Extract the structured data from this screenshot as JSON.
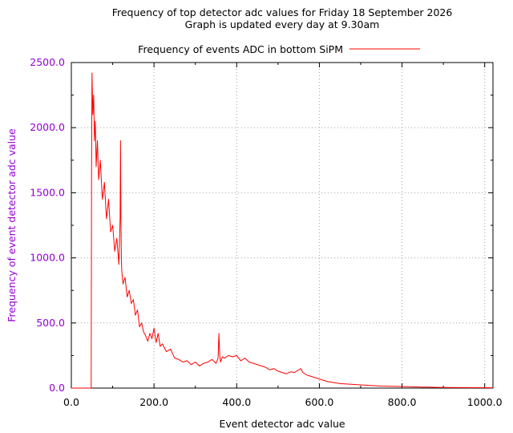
{
  "chart_data": {
    "type": "line",
    "title_line1": "Frequency of top detector adc values for Friday 18 September 2026",
    "title_line2": "Graph is updated every day at 9.30am",
    "xlabel": "Event detector adc value",
    "ylabel": "Frequency of event detector adc value",
    "xlim": [
      0,
      1020
    ],
    "ylim": [
      0,
      2500
    ],
    "x_ticks": [
      0,
      200,
      400,
      600,
      800,
      1000
    ],
    "x_tick_labels": [
      "0.0",
      "200.0",
      "400.0",
      "600.0",
      "800.0",
      "1000.0"
    ],
    "y_ticks": [
      0,
      500,
      1000,
      1500,
      2000,
      2500
    ],
    "y_tick_labels": [
      "0.0",
      "500.0",
      "1000.0",
      "1500.0",
      "2000.0",
      "2500.0"
    ],
    "grid": true,
    "legend_position": "top-center",
    "series": [
      {
        "name": "Frequency of events ADC in bottom SiPM",
        "color": "#ff0000",
        "x": [
          0,
          48,
          49,
          50,
          52,
          54,
          56,
          58,
          60,
          63,
          66,
          70,
          75,
          80,
          85,
          90,
          95,
          100,
          105,
          110,
          115,
          118,
          119,
          120,
          121,
          122,
          125,
          130,
          135,
          140,
          145,
          150,
          155,
          160,
          165,
          170,
          175,
          180,
          185,
          190,
          195,
          200,
          205,
          210,
          215,
          220,
          230,
          240,
          250,
          260,
          270,
          280,
          290,
          300,
          310,
          320,
          330,
          340,
          350,
          355,
          357,
          359,
          361,
          363,
          366,
          370,
          380,
          390,
          400,
          410,
          420,
          430,
          440,
          450,
          460,
          470,
          480,
          490,
          500,
          510,
          520,
          530,
          540,
          550,
          555,
          560,
          570,
          580,
          590,
          600,
          620,
          650,
          700,
          750,
          800,
          850,
          900,
          950,
          1000,
          1020
        ],
        "values": [
          0,
          0,
          1750,
          2420,
          2100,
          2250,
          1900,
          2050,
          1700,
          1900,
          1600,
          1750,
          1450,
          1580,
          1300,
          1450,
          1200,
          1250,
          1050,
          1150,
          950,
          1300,
          1900,
          1300,
          1000,
          900,
          800,
          850,
          700,
          750,
          650,
          680,
          560,
          600,
          470,
          500,
          430,
          400,
          360,
          420,
          380,
          460,
          350,
          420,
          320,
          340,
          280,
          300,
          230,
          220,
          200,
          210,
          180,
          200,
          170,
          190,
          200,
          220,
          190,
          230,
          420,
          250,
          200,
          220,
          240,
          230,
          250,
          240,
          250,
          210,
          230,
          200,
          190,
          180,
          170,
          160,
          140,
          150,
          130,
          120,
          110,
          125,
          120,
          140,
          150,
          120,
          100,
          90,
          80,
          70,
          50,
          35,
          25,
          15,
          12,
          8,
          5,
          4,
          3,
          2
        ]
      }
    ]
  }
}
